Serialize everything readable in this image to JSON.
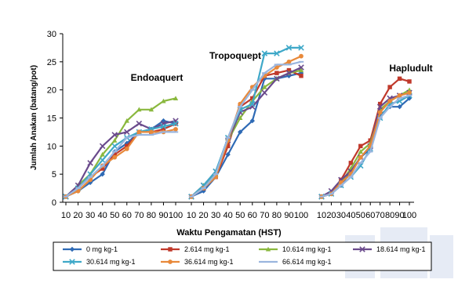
{
  "chart_data": {
    "type": "line",
    "xlabel": "Waktu Pengamatan (HST)",
    "ylabel": "Jumlah Anakan (batang/pot)",
    "ylim": [
      0,
      30
    ],
    "yticks": [
      "0",
      "5",
      "10",
      "15",
      "20",
      "25",
      "30"
    ],
    "xticks": [
      "10",
      "20",
      "30",
      "40",
      "50",
      "60",
      "70",
      "80",
      "90",
      "100"
    ],
    "x": [
      10,
      20,
      30,
      40,
      50,
      60,
      70,
      80,
      90,
      100
    ],
    "grid": false,
    "legend_position": "bottom",
    "panels": [
      {
        "label": "Endoaquert",
        "series": [
          {
            "name": "0 mg kg-1",
            "color": "#2e6ab5",
            "marker": "diamond",
            "values": [
              1,
              2,
              3.5,
              5,
              9,
              10.5,
              12.5,
              13,
              14.5,
              14
            ]
          },
          {
            "name": "2.614 mg kg-1",
            "color": "#c0392b",
            "marker": "square",
            "values": [
              1,
              2.5,
              4.5,
              6,
              8.5,
              10,
              12.5,
              12.5,
              13,
              14
            ]
          },
          {
            "name": "10.614 mg kg-1",
            "color": "#8ab83e",
            "marker": "triangle",
            "values": [
              1,
              3,
              5,
              8.5,
              11,
              14.5,
              16.5,
              16.5,
              18,
              18.5
            ]
          },
          {
            "name": "18.614 mg kg-1",
            "color": "#6a4a8c",
            "marker": "x",
            "values": [
              1,
              3,
              7,
              10,
              12,
              12.5,
              14,
              13,
              14,
              14.5
            ]
          },
          {
            "name": "30.614 mg kg-1",
            "color": "#3ea8c8",
            "marker": "x",
            "values": [
              1,
              2.5,
              5,
              7.5,
              10,
              11.5,
              12.5,
              13,
              13.5,
              14
            ]
          },
          {
            "name": "36.614 mg kg-1",
            "color": "#e8893a",
            "marker": "circle",
            "values": [
              1,
              2,
              4,
              6.5,
              8,
              9.5,
              12.5,
              12.5,
              12.5,
              13
            ]
          },
          {
            "name": "66.614 mg kg-1",
            "color": "#9ab5de",
            "marker": "dash",
            "values": [
              1,
              2.5,
              4.5,
              6.5,
              9,
              11.5,
              12,
              12,
              12.5,
              12.5
            ]
          }
        ]
      },
      {
        "label": "Tropoquept",
        "series": [
          {
            "name": "0 mg kg-1",
            "color": "#2e6ab5",
            "marker": "diamond",
            "values": [
              1,
              2,
              4.5,
              8.5,
              12.5,
              14.5,
              22,
              22,
              22.5,
              23
            ]
          },
          {
            "name": "2.614 mg kg-1",
            "color": "#c0392b",
            "marker": "square",
            "values": [
              1,
              2.5,
              4.5,
              10,
              17,
              18.5,
              22.5,
              23,
              23.5,
              22.5
            ]
          },
          {
            "name": "10.614 mg kg-1",
            "color": "#8ab83e",
            "marker": "triangle",
            "values": [
              1,
              3,
              5,
              11,
              15,
              18,
              20.5,
              22,
              23,
              23.5
            ]
          },
          {
            "name": "18.614 mg kg-1",
            "color": "#6a4a8c",
            "marker": "x",
            "values": [
              1,
              3,
              5.5,
              11,
              16,
              17,
              19.5,
              22,
              23,
              24
            ]
          },
          {
            "name": "30.614 mg kg-1",
            "color": "#3ea8c8",
            "marker": "x",
            "values": [
              1,
              3,
              5.5,
              11.5,
              16.5,
              17.5,
              26.5,
              26.5,
              27.5,
              27.5
            ]
          },
          {
            "name": "36.614 mg kg-1",
            "color": "#e8893a",
            "marker": "circle",
            "values": [
              1,
              2.5,
              4.5,
              11,
              17.5,
              20.5,
              22.5,
              24,
              25,
              26
            ]
          },
          {
            "name": "66.614 mg kg-1",
            "color": "#9ab5de",
            "marker": "dash",
            "values": [
              1,
              2.5,
              5,
              11.5,
              17,
              20,
              23,
              24.5,
              24.5,
              25
            ]
          }
        ]
      },
      {
        "label": "Hapludult",
        "series": [
          {
            "name": "0 mg kg-1",
            "color": "#2e6ab5",
            "marker": "diamond",
            "values": [
              1,
              1.5,
              3,
              5.5,
              8,
              9.5,
              15.5,
              17,
              17,
              18.5
            ]
          },
          {
            "name": "2.614 mg kg-1",
            "color": "#c0392b",
            "marker": "square",
            "values": [
              1,
              1.5,
              4,
              7,
              10,
              11,
              17.5,
              20.5,
              22,
              21.5
            ]
          },
          {
            "name": "10.614 mg kg-1",
            "color": "#8ab83e",
            "marker": "triangle",
            "values": [
              1,
              1.5,
              3.5,
              6,
              9,
              10.5,
              16.5,
              18,
              19,
              20
            ]
          },
          {
            "name": "18.614 mg kg-1",
            "color": "#6a4a8c",
            "marker": "x",
            "values": [
              1,
              2,
              4,
              5.5,
              8,
              10,
              17,
              18.5,
              19,
              19.5
            ]
          },
          {
            "name": "30.614 mg kg-1",
            "color": "#3ea8c8",
            "marker": "x",
            "values": [
              1,
              1.5,
              3,
              4.5,
              6.5,
              9.5,
              15,
              17.5,
              18,
              19
            ]
          },
          {
            "name": "36.614 mg kg-1",
            "color": "#e8893a",
            "marker": "circle",
            "values": [
              1,
              1.5,
              3.5,
              5,
              8,
              10,
              16,
              18,
              19,
              19.5
            ]
          },
          {
            "name": "66.614 mg kg-1",
            "color": "#9ab5de",
            "marker": "dash",
            "values": [
              1,
              1.5,
              3,
              4.5,
              7,
              9,
              15,
              17,
              18.5,
              19
            ]
          }
        ]
      }
    ]
  }
}
